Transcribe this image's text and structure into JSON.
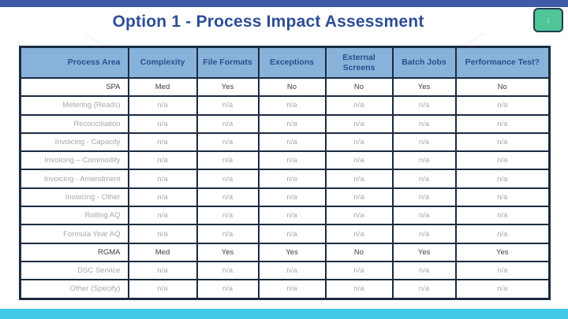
{
  "slide": {
    "title": "Option 1 - Process Impact Assessment",
    "page_number": "1",
    "accent_colors": {
      "top_bar": "#3E5BA7",
      "bottom_bar": "#42C9EA",
      "title_text": "#2E4E95",
      "badge_fill": "#4FC598",
      "badge_border": "#1E3D50"
    }
  },
  "table": {
    "style": {
      "header_bg": "#87B3DA",
      "header_text": "#2E4D8F",
      "border": "#1B2B40",
      "row_text": "#404040",
      "muted_row_text": "#A8A8A8"
    },
    "headers": [
      "Process Area",
      "Complexity",
      "File Formats",
      "Exceptions",
      "External Screens",
      "Batch Jobs",
      "Performance Test?"
    ],
    "rows": [
      {
        "area": "SPA",
        "values": [
          "Med",
          "Yes",
          "No",
          "No",
          "Yes",
          "No"
        ]
      },
      {
        "area": "Metering (Reads)",
        "values": [
          "n/a",
          "n/a",
          "n/a",
          "n/a",
          "n/a",
          "n/a"
        ]
      },
      {
        "area": "Reconciliation",
        "values": [
          "n/a",
          "n/a",
          "n/a",
          "n/a",
          "n/a",
          "n/a"
        ]
      },
      {
        "area": "Invoicing - Capacity",
        "values": [
          "n/a",
          "n/a",
          "n/a",
          "n/a",
          "n/a",
          "n/a"
        ]
      },
      {
        "area": "Invoicing – Commodity",
        "values": [
          "n/a",
          "n/a",
          "n/a",
          "n/a",
          "n/a",
          "n/a"
        ]
      },
      {
        "area": "Invoicing - Amendment",
        "values": [
          "n/a",
          "n/a",
          "n/a",
          "n/a",
          "n/a",
          "n/a"
        ]
      },
      {
        "area": "Invoicing - Other",
        "values": [
          "n/a",
          "n/a",
          "n/a",
          "n/a",
          "n/a",
          "n/a"
        ]
      },
      {
        "area": "Rolling AQ",
        "values": [
          "n/a",
          "n/a",
          "n/a",
          "n/a",
          "n/a",
          "n/a"
        ]
      },
      {
        "area": "Formula Year AQ",
        "values": [
          "n/a",
          "n/a",
          "n/a",
          "n/a",
          "n/a",
          "n/a"
        ]
      },
      {
        "area": "RGMA",
        "values": [
          "Med",
          "Yes",
          "Yes",
          "No",
          "Yes",
          "Yes"
        ]
      },
      {
        "area": "DSC Service",
        "values": [
          "n/a",
          "n/a",
          "n/a",
          "n/a",
          "n/a",
          "n/a"
        ]
      },
      {
        "area": "Other (Specify)",
        "values": [
          "n/a",
          "n/a",
          "n/a",
          "n/a",
          "n/a",
          "n/a"
        ]
      }
    ]
  }
}
